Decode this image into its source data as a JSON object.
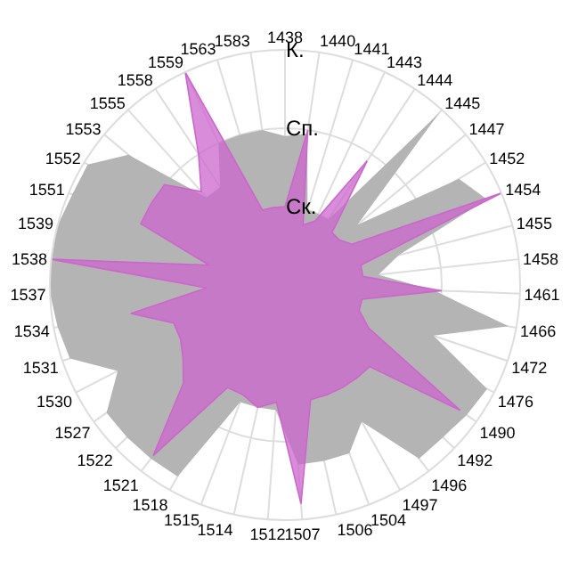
{
  "chart_data": {
    "type": "radar",
    "categories": [
      "1438",
      "1440",
      "1441",
      "1443",
      "1444",
      "1445",
      "1447",
      "1452",
      "1454",
      "1455",
      "1458",
      "1461",
      "1466",
      "1472",
      "1476",
      "1490",
      "1492",
      "1496",
      "1497",
      "1504",
      "1506",
      "1507",
      "1512",
      "1514",
      "1515",
      "1518",
      "1521",
      "1522",
      "1527",
      "1530",
      "1531",
      "1534",
      "1537",
      "1538",
      "1539",
      "1551",
      "1552",
      "1553",
      "1555",
      "1558",
      "1559",
      "1563",
      "1583"
    ],
    "ylim": [
      0,
      3
    ],
    "yticks": [
      {
        "value": 1,
        "label": "Ск."
      },
      {
        "value": 2,
        "label": "Сп."
      },
      {
        "value": 3,
        "label": "К."
      }
    ],
    "grid": true,
    "series": [
      {
        "type": "area",
        "color": "#b4b4b4",
        "values": [
          1.9,
          1.95,
          1.0,
          1.0,
          1.0,
          2.95,
          1.2,
          2.6,
          2.8,
          1.5,
          1.2,
          1.9,
          2.9,
          2.0,
          2.9,
          2.85,
          2.8,
          2.8,
          2.0,
          2.3,
          2.3,
          2.3,
          1.6,
          1.6,
          1.6,
          2.8,
          2.8,
          2.8,
          2.8,
          2.4,
          2.9,
          2.95,
          3.0,
          3.0,
          3.0,
          2.95,
          2.95,
          2.6,
          1.5,
          1.5,
          2.0,
          2.0,
          2.0
        ]
      },
      {
        "type": "area",
        "color": "#cc66cc",
        "values": [
          1.0,
          2.0,
          0.8,
          0.9,
          1.9,
          0.9,
          0.9,
          1.0,
          3.0,
          1.0,
          1.0,
          2.0,
          1.0,
          1.0,
          1.2,
          2.75,
          1.5,
          1.5,
          1.5,
          1.5,
          1.5,
          2.8,
          1.5,
          1.6,
          1.5,
          1.5,
          2.75,
          1.8,
          1.6,
          1.5,
          1.5,
          2.0,
          1.0,
          3.0,
          1.0,
          2.0,
          2.0,
          2.0,
          1.6,
          2.0,
          3.0,
          1.0,
          1.0
        ]
      }
    ]
  }
}
